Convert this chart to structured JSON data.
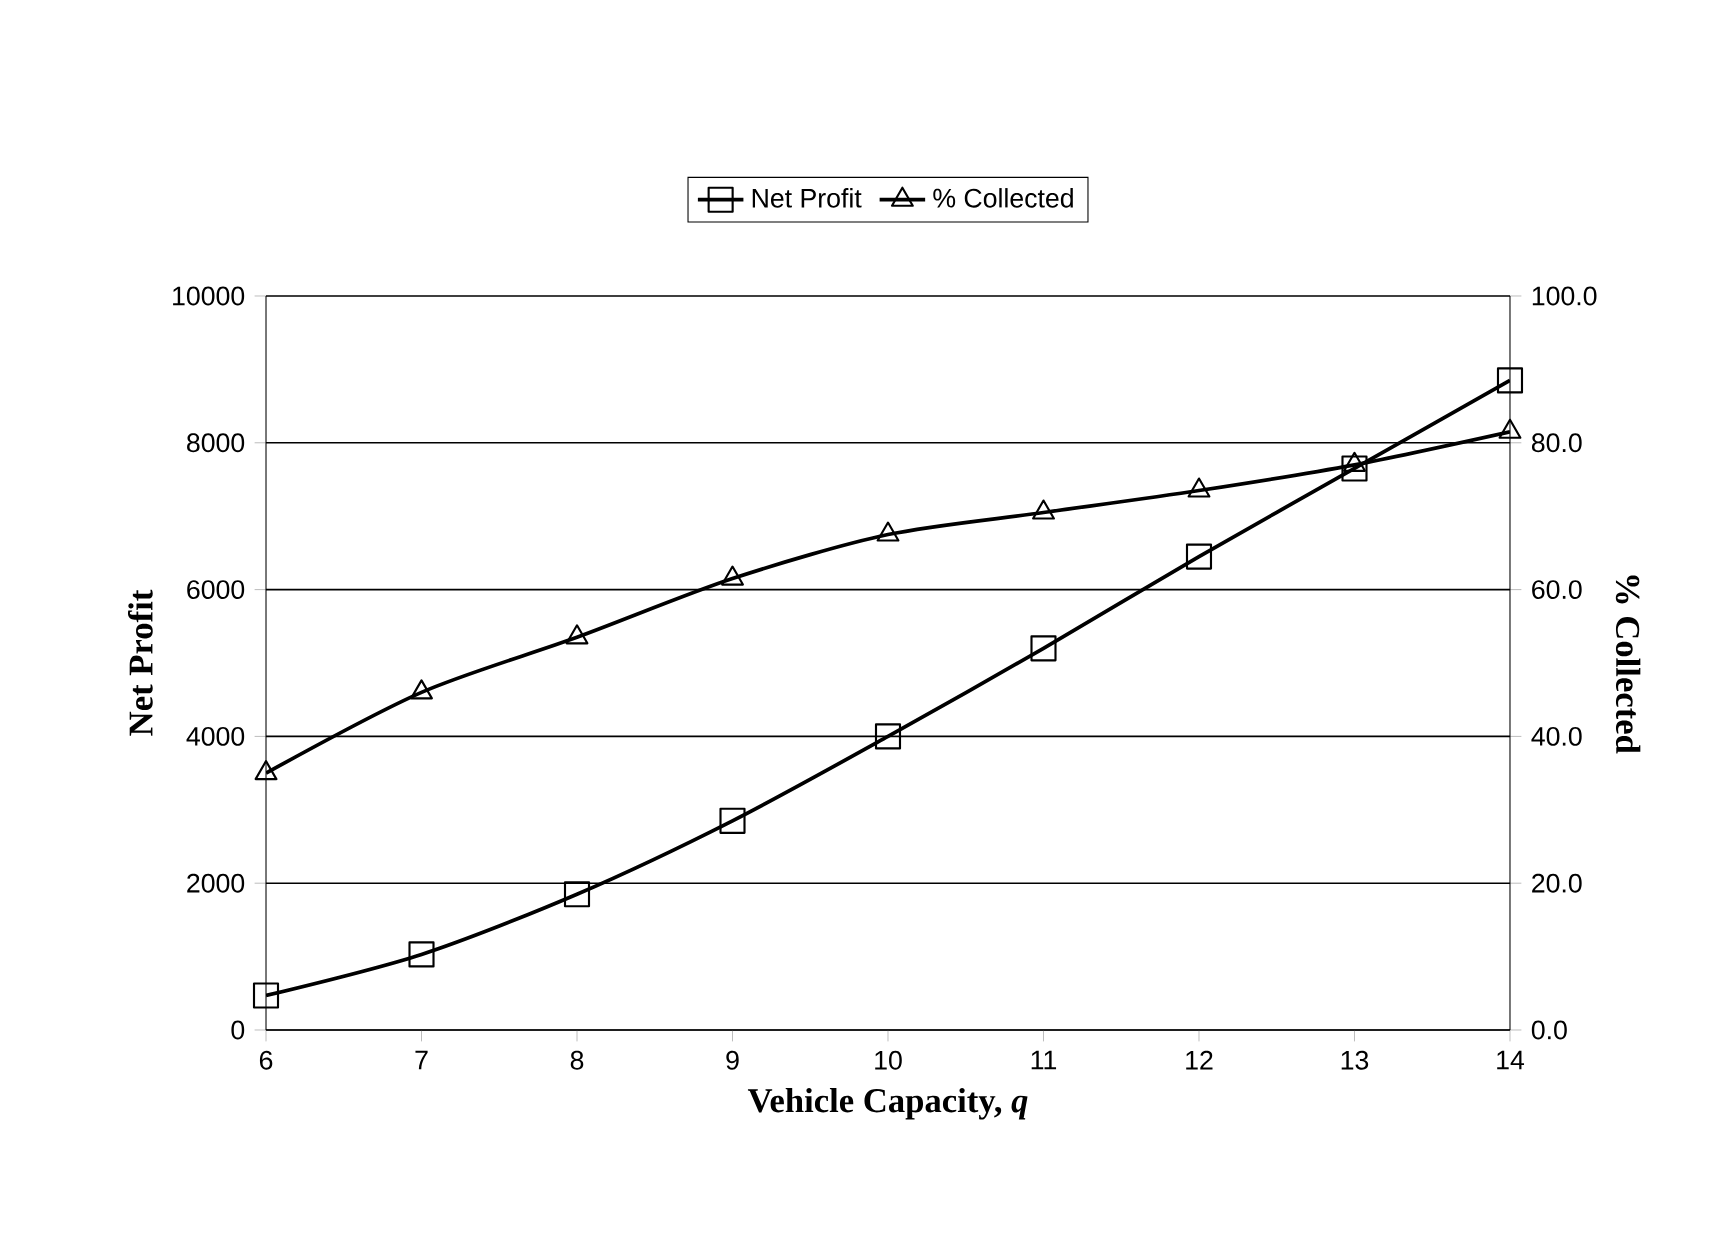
{
  "chart_data": {
    "type": "line",
    "xlabel": "Vehicle Capacity, *q*",
    "ylabel": "Net Profit",
    "y2label": "% Collected",
    "x": [
      6,
      7,
      8,
      9,
      10,
      11,
      12,
      13,
      14
    ],
    "series": [
      {
        "name": "Net Profit",
        "color": "#000000",
        "marker": "square",
        "values": [
          470,
          1030,
          1850,
          2850,
          4000,
          5200,
          6450,
          7650,
          8850
        ]
      },
      {
        "name": "% Collected",
        "color": "#000000",
        "marker": "triangle",
        "axis": "y2",
        "values": [
          35,
          46,
          53.5,
          61.5,
          67.5,
          70.5,
          73.5,
          77,
          81.5
        ]
      }
    ],
    "xlim": [
      6,
      14
    ],
    "xticks": [
      6,
      7,
      8,
      9,
      10,
      11,
      12,
      13,
      14
    ],
    "ylim": [
      0,
      10000
    ],
    "yticks": [
      0,
      2000,
      4000,
      6000,
      8000,
      10000
    ],
    "y2lim": [
      0,
      100
    ],
    "y2ticks": [
      {
        "value": 0,
        "label": "0.0"
      },
      {
        "value": 20,
        "label": "20.0"
      },
      {
        "value": 40,
        "label": "40.0"
      },
      {
        "value": 60,
        "label": "60.0"
      },
      {
        "value": 80,
        "label": "80.0"
      },
      {
        "value": 100,
        "label": "100.0"
      }
    ],
    "grid": "y",
    "legend": "top",
    "line_style": "solid"
  }
}
